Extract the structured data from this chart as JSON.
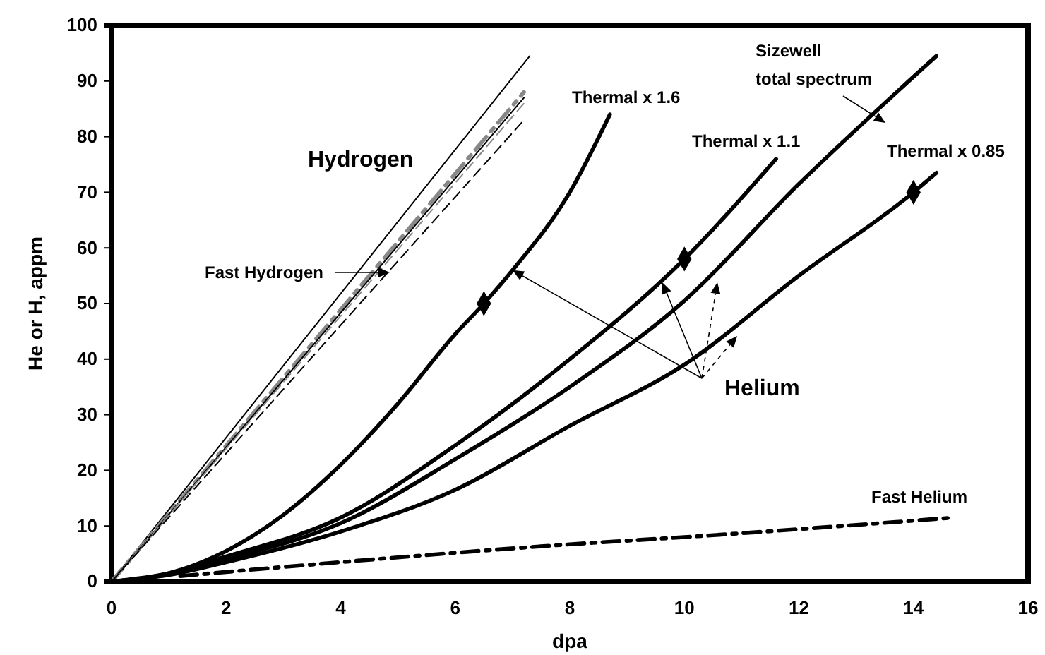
{
  "chart_data": {
    "type": "line",
    "xlabel": "dpa",
    "ylabel": "He or H, appm",
    "xlim": [
      0,
      16
    ],
    "xticks": [
      0,
      2,
      4,
      6,
      8,
      10,
      12,
      14,
      16
    ],
    "ylim": [
      0,
      100
    ],
    "yticks": [
      0,
      10,
      20,
      30,
      40,
      50,
      60,
      70,
      80,
      90,
      100
    ],
    "grid": false,
    "marker": "none",
    "line_style": "solid",
    "series": [
      {
        "color": "#000000",
        "line_style": "solid",
        "x": [
          0,
          7.3
        ],
        "values": [
          0,
          94.5
        ]
      },
      {
        "color": "#888888",
        "line_style": "dashdot",
        "x": [
          0,
          7.2
        ],
        "values": [
          0,
          88
        ]
      },
      {
        "color": "#000000",
        "line_style": "solid",
        "x": [
          0,
          7.2
        ],
        "values": [
          0,
          87
        ]
      },
      {
        "color": "#888888",
        "line_style": "dashed",
        "x": [
          0,
          7.2
        ],
        "values": [
          0,
          86
        ]
      },
      {
        "color": "#000000",
        "line_style": "dashed",
        "x": [
          0,
          7.2
        ],
        "values": [
          0,
          83
        ]
      },
      {
        "name": "Thermal x 1.6",
        "color": "#000000",
        "x": [
          0,
          1,
          2,
          3,
          4,
          5,
          6,
          6.5,
          7,
          8,
          8.7
        ],
        "values": [
          0,
          1.5,
          5.5,
          12,
          21,
          32,
          44.5,
          50,
          56,
          70,
          84
        ]
      },
      {
        "name": "Thermal x 1.1",
        "color": "#000000",
        "x": [
          0,
          1,
          2,
          4,
          6,
          8,
          10,
          11.6
        ],
        "values": [
          0,
          1.5,
          4.5,
          11.5,
          24.5,
          40,
          58,
          76
        ]
      },
      {
        "name": "Sizewell total spectrum",
        "color": "#000000",
        "x": [
          0,
          1,
          2,
          4,
          6,
          8,
          10,
          12,
          14.4
        ],
        "values": [
          0,
          1.3,
          4,
          10.5,
          22,
          35,
          50.5,
          71.5,
          94.5
        ]
      },
      {
        "name": "Thermal x 0.85",
        "color": "#000000",
        "x": [
          0,
          1,
          2,
          4,
          6,
          8,
          10,
          12,
          14,
          14.4
        ],
        "values": [
          0,
          1.2,
          3.5,
          9,
          16.5,
          28,
          39,
          55,
          70,
          73.5
        ]
      },
      {
        "name": "Fast Helium",
        "color": "#000000",
        "line_style": "dashdot",
        "x": [
          1.2,
          4,
          8,
          10,
          14.7
        ],
        "values": [
          1,
          3.5,
          6.7,
          8,
          11.5
        ]
      },
      {
        "type": "scatter",
        "color": "#000000",
        "marker": "diamond",
        "x": [
          6.5,
          10,
          14
        ],
        "values": [
          50,
          58,
          70
        ]
      }
    ],
    "annotations": [
      "Hydrogen",
      "Fast Hydrogen",
      {
        "text": "Helium",
        "x": 7,
        "y": 56
      }
    ]
  }
}
